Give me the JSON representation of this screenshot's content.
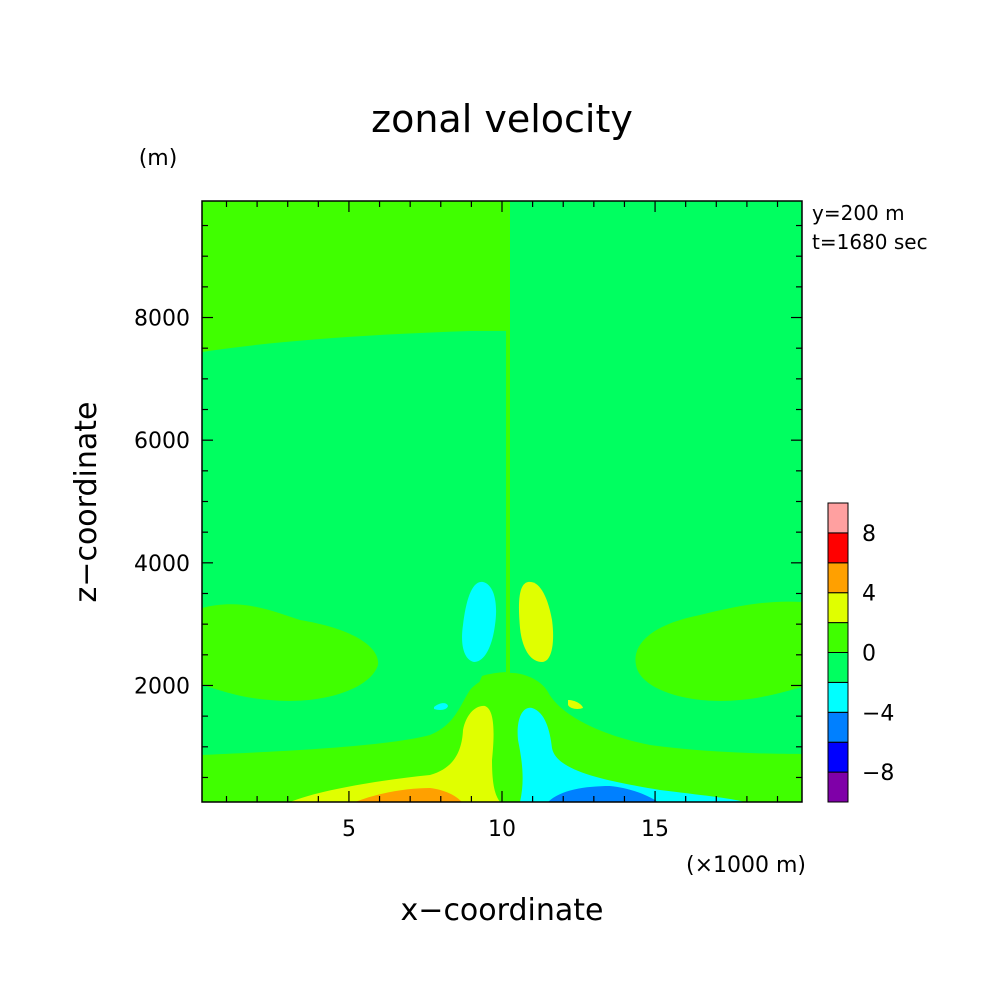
{
  "chart_data": {
    "type": "heatmap",
    "title": "zonal velocity",
    "xlabel": "x−coordinate",
    "ylabel": "z−coordinate",
    "x_unit": "(×1000 m)",
    "y_unit": "(m)",
    "annotations": [
      "y=200 m",
      "t=1680 sec"
    ],
    "xlim": [
      0.2,
      19.8
    ],
    "ylim": [
      100,
      9900
    ],
    "x_ticks": [
      5,
      10,
      15
    ],
    "y_ticks": [
      2000,
      4000,
      6000,
      8000
    ],
    "colorbar": {
      "levels": [
        -10,
        -8,
        -6,
        -4,
        -2,
        0,
        2,
        4,
        6,
        8,
        10
      ],
      "tick_labels": [
        "−8",
        "−4",
        "0",
        "4",
        "8"
      ],
      "tick_values": [
        -8,
        -4,
        0,
        4,
        8
      ],
      "colors": [
        "#7f00a8",
        "#0000ff",
        "#0080ff",
        "#00ffff",
        "#00ff60",
        "#40ff00",
        "#e0ff00",
        "#ffa000",
        "#ff0000",
        "#ffa0a0"
      ]
    },
    "field_regions": [
      {
        "label": "upper-left",
        "value_range": [
          0,
          2
        ],
        "color": "#40ff00"
      },
      {
        "label": "upper-right",
        "value_range": [
          -2,
          0
        ],
        "color": "#00ff60"
      },
      {
        "label": "mid-layer",
        "value_range": [
          -2,
          0
        ],
        "color": "#00ff60"
      },
      {
        "label": "left-cyan-lobe",
        "value_range": [
          -4,
          -2
        ],
        "color": "#00ffff"
      },
      {
        "label": "right-yellow-lobe",
        "value_range": [
          2,
          4
        ],
        "color": "#e0ff00"
      },
      {
        "label": "lower-left-positive",
        "value_range": [
          4,
          6
        ],
        "color": "#ffa000"
      },
      {
        "label": "lower-right-negative",
        "value_range": [
          -6,
          -4
        ],
        "color": "#0080ff"
      }
    ]
  }
}
